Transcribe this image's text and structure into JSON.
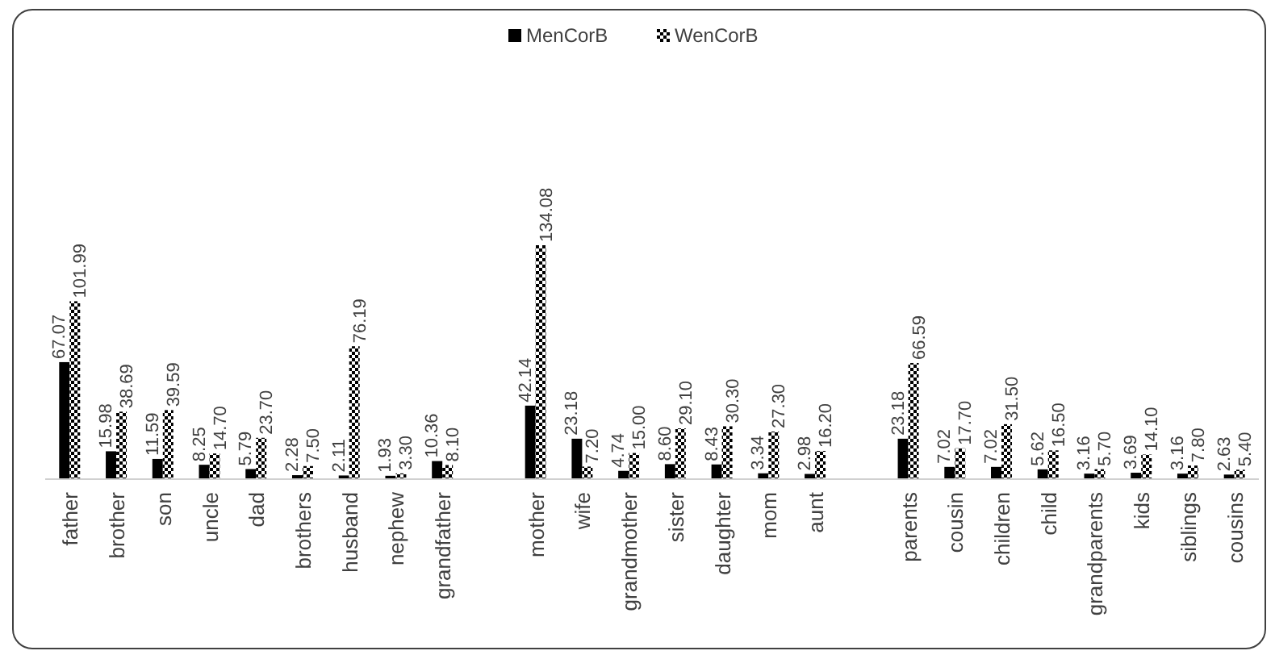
{
  "chart_data": {
    "type": "bar",
    "categories": [
      "father",
      "brother",
      "son",
      "uncle",
      "dad",
      "brothers",
      "husband",
      "nephew",
      "grandfather",
      null,
      "mother",
      "wife",
      "grandmother",
      "sister",
      "daughter",
      "mom",
      "aunt",
      null,
      "parents",
      "cousin",
      "children",
      "child",
      "grandparents",
      "kids",
      "siblings",
      "cousins"
    ],
    "series": [
      {
        "name": "MenCorB",
        "color": "#000000",
        "values": [
          67.07,
          15.98,
          11.59,
          8.25,
          5.79,
          2.28,
          2.11,
          1.93,
          10.36,
          null,
          42.14,
          23.18,
          4.74,
          8.6,
          8.43,
          3.34,
          2.98,
          null,
          23.18,
          7.02,
          7.02,
          5.62,
          3.16,
          3.69,
          3.16,
          2.63
        ],
        "value_labels": [
          "67.07",
          "15.98",
          "11.59",
          "8.25",
          "5.79",
          "2.28",
          "2.11",
          "1.93",
          "10.36",
          null,
          "42.14",
          "23.18",
          "4.74",
          "8.60",
          "8.43",
          "3.34",
          "2.98",
          null,
          "23.18",
          "7.02",
          "7.02",
          "5.62",
          "3.16",
          "3.69",
          "3.16",
          "2.63"
        ]
      },
      {
        "name": "WenCorB",
        "color": "#000000",
        "values": [
          101.99,
          38.69,
          39.59,
          14.7,
          23.7,
          7.5,
          76.19,
          3.3,
          8.1,
          null,
          134.08,
          7.2,
          15.0,
          29.1,
          30.3,
          27.3,
          16.2,
          null,
          66.59,
          17.7,
          31.5,
          16.5,
          5.7,
          14.1,
          7.8,
          5.4
        ],
        "value_labels": [
          "101.99",
          "38.69",
          "39.59",
          "14.70",
          "23.70",
          "7.50",
          "76.19",
          "3.30",
          "8.10",
          null,
          "134.08",
          "7.20",
          "15.00",
          "29.10",
          "30.30",
          "27.30",
          "16.20",
          null,
          "66.59",
          "17.70",
          "31.50",
          "16.50",
          "5.70",
          "14.10",
          "7.80",
          "5.40"
        ]
      }
    ],
    "legend": "top",
    "tick_labels": "x"
  }
}
